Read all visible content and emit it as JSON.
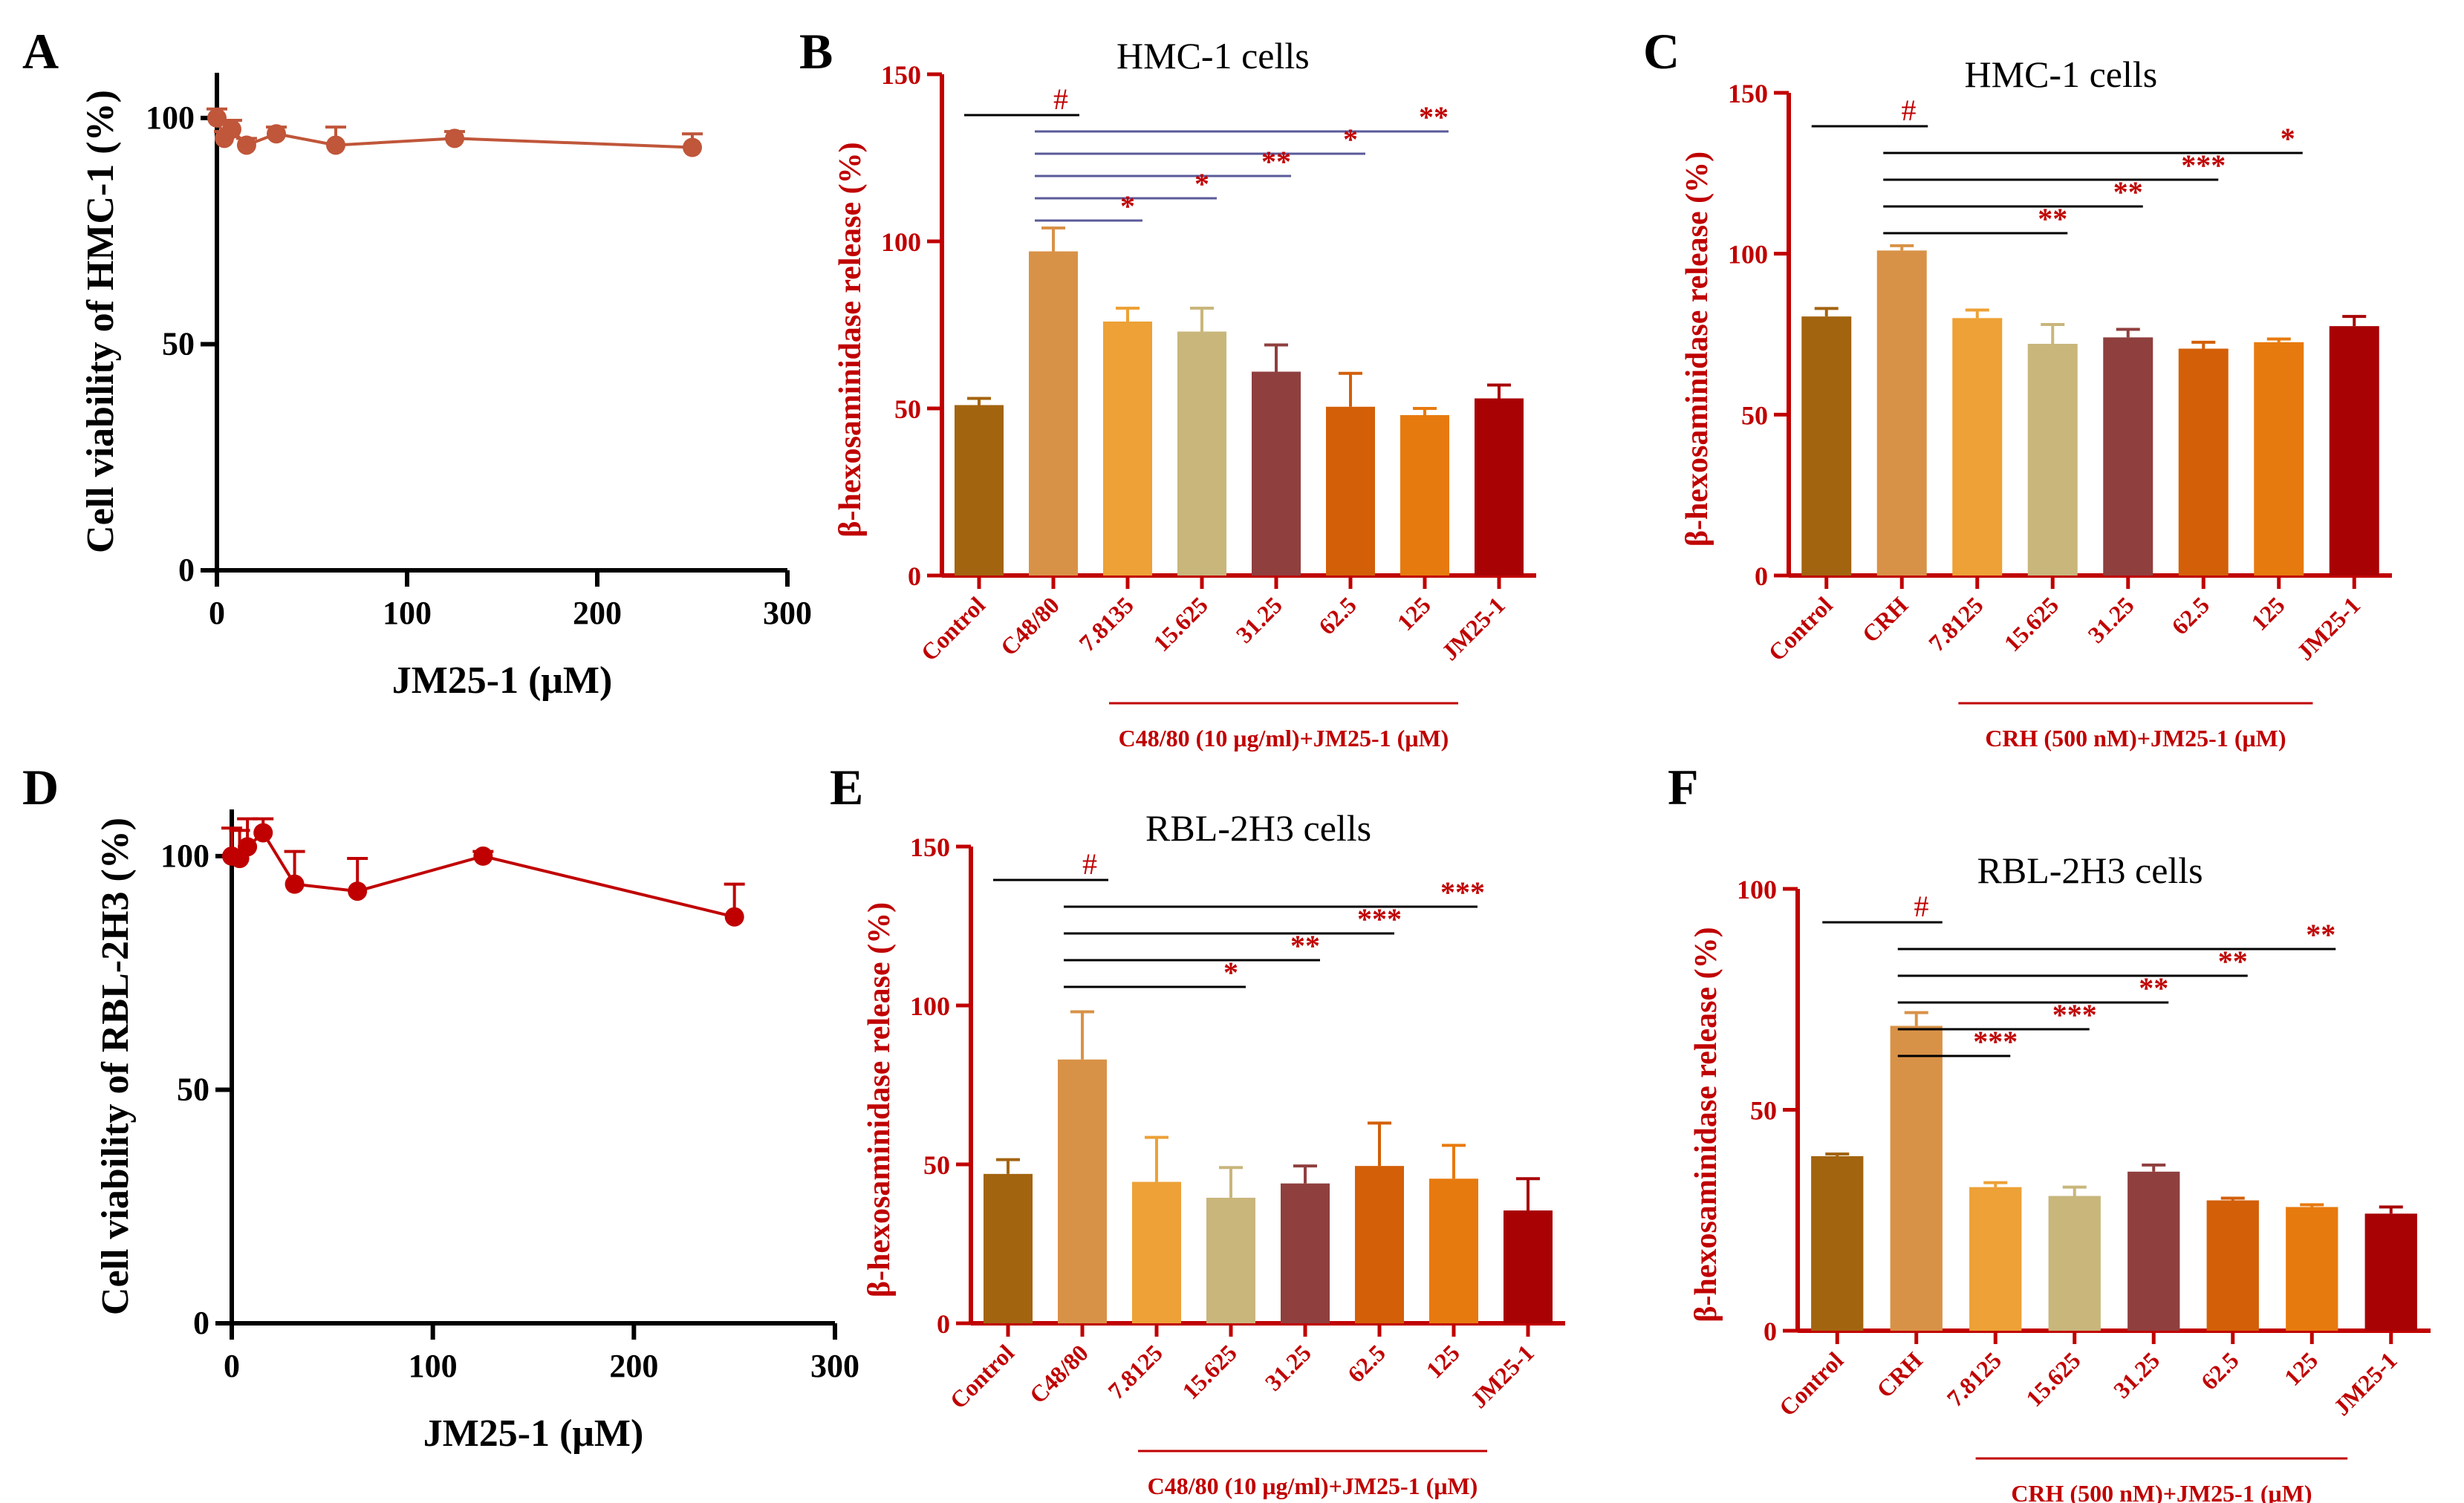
{
  "colors": {
    "axis_red": "#c00000",
    "black": "#000000",
    "line_brown": "#c0563a",
    "line_red": "#c00000",
    "compare_blue": "#5a5a9a",
    "bars": [
      "#a36410",
      "#d89247",
      "#eda136",
      "#c8b67b",
      "#8f3f3e",
      "#d35f08",
      "#e77a0e",
      "#a80204"
    ]
  },
  "chart_data": [
    {
      "panel": "A",
      "type": "line",
      "title": "",
      "xlabel": "JM25-1 (μM)",
      "ylabel": "Cell viability of HMC-1 (%)",
      "xlim": [
        0,
        300
      ],
      "ylim": [
        0,
        110
      ],
      "xticks": [
        "0",
        "100",
        "200",
        "300"
      ],
      "yticks": [
        "0",
        "50",
        "100"
      ],
      "x": [
        0,
        3.9,
        7.8,
        15.6,
        31.25,
        62.5,
        125,
        250
      ],
      "y": [
        100,
        95.5,
        97.5,
        94,
        96.5,
        94,
        95.5,
        93.5
      ],
      "err": [
        2,
        1.5,
        2,
        1.5,
        1.5,
        4,
        1.5,
        3
      ],
      "color": "#c0563a"
    },
    {
      "panel": "B",
      "type": "bar",
      "title": "HMC-1 cells",
      "xlabel": "C48/80 (10 μg/ml)+JM25-1 (μM)",
      "ylabel": "β-hexosaminidase release (%)",
      "ylim": [
        0,
        150
      ],
      "yticks": [
        "0",
        "50",
        "100",
        "150"
      ],
      "categories": [
        "Control",
        "C48/80",
        "7.8135",
        "15.625",
        "31.25",
        "62.5",
        "125",
        "JM25-1"
      ],
      "values": [
        51,
        97,
        76,
        73,
        61,
        50.5,
        48,
        53
      ],
      "err": [
        2,
        7,
        4,
        7,
        8,
        10,
        2,
        4
      ],
      "hash": "#",
      "comparisons": [
        {
          "from": 1,
          "to": 6,
          "label": "**"
        },
        {
          "from": 1,
          "to": 5,
          "label": "*"
        },
        {
          "from": 1,
          "to": 4,
          "label": "**"
        },
        {
          "from": 1,
          "to": 3,
          "label": "*"
        },
        {
          "from": 1,
          "to": 2,
          "label": "*"
        }
      ]
    },
    {
      "panel": "C",
      "type": "bar",
      "title": "HMC-1 cells",
      "xlabel": "CRH (500 nM)+JM25-1 (μM)",
      "ylabel": "β-hexosaminidase release (%)",
      "ylim": [
        0,
        150
      ],
      "yticks": [
        "0",
        "50",
        "100",
        "150"
      ],
      "categories": [
        "Control",
        "CRH",
        "7.8125",
        "15.625",
        "31.25",
        "62.5",
        "125",
        "JM25-1"
      ],
      "values": [
        80.5,
        101,
        80,
        72,
        74,
        70.5,
        72.5,
        77.5
      ],
      "err": [
        2.5,
        1.5,
        2.5,
        6,
        2.5,
        2,
        1,
        3
      ],
      "hash": "#",
      "comparisons": [
        {
          "from": 1,
          "to": 6,
          "label": "*"
        },
        {
          "from": 1,
          "to": 5,
          "label": "***"
        },
        {
          "from": 1,
          "to": 4,
          "label": "**"
        },
        {
          "from": 1,
          "to": 3,
          "label": "**"
        }
      ]
    },
    {
      "panel": "D",
      "type": "line",
      "title": "",
      "xlabel": "JM25-1 (μM)",
      "ylabel": "Cell viability of RBL-2H3 (%)",
      "xlim": [
        0,
        300
      ],
      "ylim": [
        0,
        110
      ],
      "xticks": [
        "0",
        "100",
        "200",
        "300"
      ],
      "yticks": [
        "0",
        "50",
        "100"
      ],
      "x": [
        0,
        3.9,
        7.8,
        15.6,
        31.25,
        62.5,
        125,
        250
      ],
      "y": [
        100,
        99.5,
        102,
        105,
        94,
        92.5,
        100,
        87
      ],
      "err": [
        6,
        6,
        6,
        3,
        7,
        7,
        1,
        7
      ],
      "color": "#c00000"
    },
    {
      "panel": "E",
      "type": "bar",
      "title": "RBL-2H3 cells",
      "xlabel": "C48/80 (10 μg/ml)+JM25-1 (μM)",
      "ylabel": "β-hexosaminidase release (%)",
      "ylim": [
        0,
        150
      ],
      "yticks": [
        "0",
        "50",
        "100",
        "150"
      ],
      "categories": [
        "Control",
        "C48/80",
        "7.8125",
        "15.625",
        "31.25",
        "62.5",
        "125",
        "JM25-1"
      ],
      "values": [
        47,
        83,
        44.5,
        39.5,
        44,
        49.5,
        45.5,
        35.5
      ],
      "err": [
        4.5,
        15,
        14,
        9.5,
        5.5,
        13.5,
        10.5,
        10
      ],
      "hash": "#",
      "comparisons": [
        {
          "from": 1,
          "to": 6,
          "label": "***"
        },
        {
          "from": 1,
          "to": 5,
          "label": "***"
        },
        {
          "from": 1,
          "to": 4,
          "label": "**"
        },
        {
          "from": 1,
          "to": 3,
          "label": "*"
        }
      ]
    },
    {
      "panel": "F",
      "type": "bar",
      "title": "RBL-2H3 cells",
      "xlabel": "CRH (500 nM)+JM25-1 (μM)",
      "ylabel": "β-hexosaminidase release (%)",
      "ylim": [
        0,
        100
      ],
      "yticks": [
        "0",
        "50",
        "100"
      ],
      "categories": [
        "Control",
        "CRH",
        "7.8125",
        "15.625",
        "31.25",
        "62.5",
        "125",
        "JM25-1"
      ],
      "values": [
        39.5,
        69,
        32.5,
        30.5,
        36,
        29.5,
        28,
        26.5
      ],
      "err": [
        0.5,
        3,
        1,
        2,
        1.5,
        0.5,
        0.5,
        1.5
      ],
      "hash": "#",
      "comparisons": [
        {
          "from": 1,
          "to": 6,
          "label": "**"
        },
        {
          "from": 1,
          "to": 5,
          "label": "**"
        },
        {
          "from": 1,
          "to": 4,
          "label": "**"
        },
        {
          "from": 1,
          "to": 3,
          "label": "***"
        },
        {
          "from": 1,
          "to": 2,
          "label": "***"
        }
      ]
    }
  ]
}
